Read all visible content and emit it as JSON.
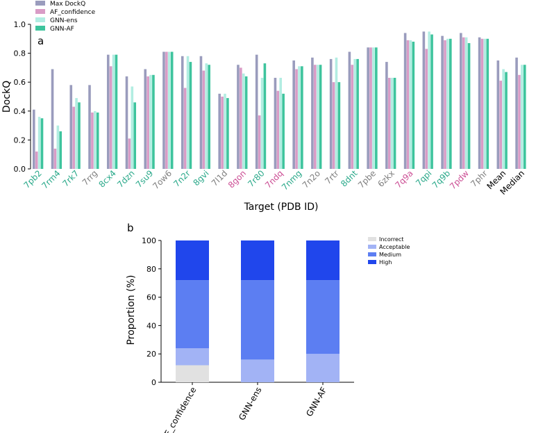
{
  "colors": {
    "max_dockq": "#9a9cbd",
    "af_confidence": "#d99cc6",
    "gnn_ens": "#b2ede2",
    "gnn_af": "#3ec49d",
    "label_green": "#2aa98a",
    "label_gray": "#7f7f7f",
    "label_pink": "#cc4f95",
    "label_black": "#000000",
    "incorrect": "#e1e1e1",
    "acceptable": "#a2b3f5",
    "medium": "#5c7ef2",
    "high": "#2046ec"
  },
  "chart_data": [
    {
      "type": "bar",
      "panel": "a",
      "xlabel": "Target (PDB ID)",
      "ylabel": "DockQ",
      "ylim": [
        0,
        1.0
      ],
      "yticks": [
        "0.0",
        "0.2",
        "0.4",
        "0.6",
        "0.8",
        "1.0"
      ],
      "legend_position": "top-left",
      "categories": [
        "7pb2",
        "7rm4",
        "7rk7",
        "7rrg",
        "8cx4",
        "7dzn",
        "7su9",
        "7ow6",
        "7n2r",
        "8gvi",
        "7l1d",
        "8gon",
        "7r80",
        "7ndq",
        "7nmg",
        "7n2o",
        "7rtr",
        "8dnt",
        "7pbe",
        "6zkx",
        "7q9a",
        "7qpi",
        "7q9b",
        "7pdw",
        "7phr",
        "Mean",
        "Median"
      ],
      "category_colors": [
        "green",
        "green",
        "green",
        "gray",
        "green",
        "green",
        "green",
        "gray",
        "green",
        "green",
        "gray",
        "pink",
        "green",
        "pink",
        "green",
        "gray",
        "gray",
        "green",
        "gray",
        "gray",
        "pink",
        "green",
        "green",
        "pink",
        "gray",
        "black",
        "black"
      ],
      "series": [
        {
          "name": "Max DockQ",
          "color_key": "max_dockq",
          "values": [
            0.41,
            0.69,
            0.58,
            0.58,
            0.79,
            0.64,
            0.69,
            0.81,
            0.78,
            0.78,
            0.52,
            0.72,
            0.79,
            0.63,
            0.75,
            0.77,
            0.76,
            0.81,
            0.84,
            0.74,
            0.94,
            0.95,
            0.92,
            0.94,
            0.91,
            0.75,
            0.77
          ]
        },
        {
          "name": "AF_confidence",
          "color_key": "af_confidence",
          "values": [
            0.12,
            0.14,
            0.43,
            0.39,
            0.71,
            0.21,
            0.64,
            0.81,
            0.56,
            0.68,
            0.5,
            0.7,
            0.37,
            0.54,
            0.69,
            0.72,
            0.6,
            0.72,
            0.84,
            0.63,
            0.89,
            0.83,
            0.89,
            0.91,
            0.9,
            0.61,
            0.65
          ]
        },
        {
          "name": "GNN-ens",
          "color_key": "gnn_ens",
          "values": [
            0.36,
            0.3,
            0.49,
            0.4,
            0.79,
            0.57,
            0.65,
            0.81,
            0.78,
            0.73,
            0.52,
            0.66,
            0.63,
            0.63,
            0.71,
            0.72,
            0.77,
            0.76,
            0.84,
            0.63,
            0.89,
            0.95,
            0.9,
            0.91,
            0.9,
            0.69,
            0.72
          ]
        },
        {
          "name": "GNN-AF",
          "color_key": "gnn_af",
          "values": [
            0.35,
            0.26,
            0.46,
            0.39,
            0.79,
            0.46,
            0.65,
            0.81,
            0.74,
            0.72,
            0.49,
            0.64,
            0.73,
            0.52,
            0.71,
            0.72,
            0.6,
            0.76,
            0.84,
            0.63,
            0.88,
            0.93,
            0.9,
            0.87,
            0.9,
            0.67,
            0.72
          ]
        }
      ]
    },
    {
      "type": "bar",
      "stacked": true,
      "panel": "b",
      "xlabel": "",
      "ylabel": "Proportion (%)",
      "ylim": [
        0,
        100
      ],
      "yticks": [
        "0",
        "20",
        "40",
        "60",
        "80",
        "100"
      ],
      "legend_position": "top-right",
      "categories": [
        "AF_confidence",
        "GNN-ens",
        "GNN-AF"
      ],
      "series": [
        {
          "name": "Incorrect",
          "color_key": "incorrect",
          "values": [
            12,
            0,
            0
          ]
        },
        {
          "name": "Acceptable",
          "color_key": "acceptable",
          "values": [
            12,
            16,
            20
          ]
        },
        {
          "name": "Medium",
          "color_key": "medium",
          "values": [
            48,
            56,
            52
          ]
        },
        {
          "name": "High",
          "color_key": "high",
          "values": [
            28,
            28,
            28
          ]
        }
      ]
    }
  ]
}
